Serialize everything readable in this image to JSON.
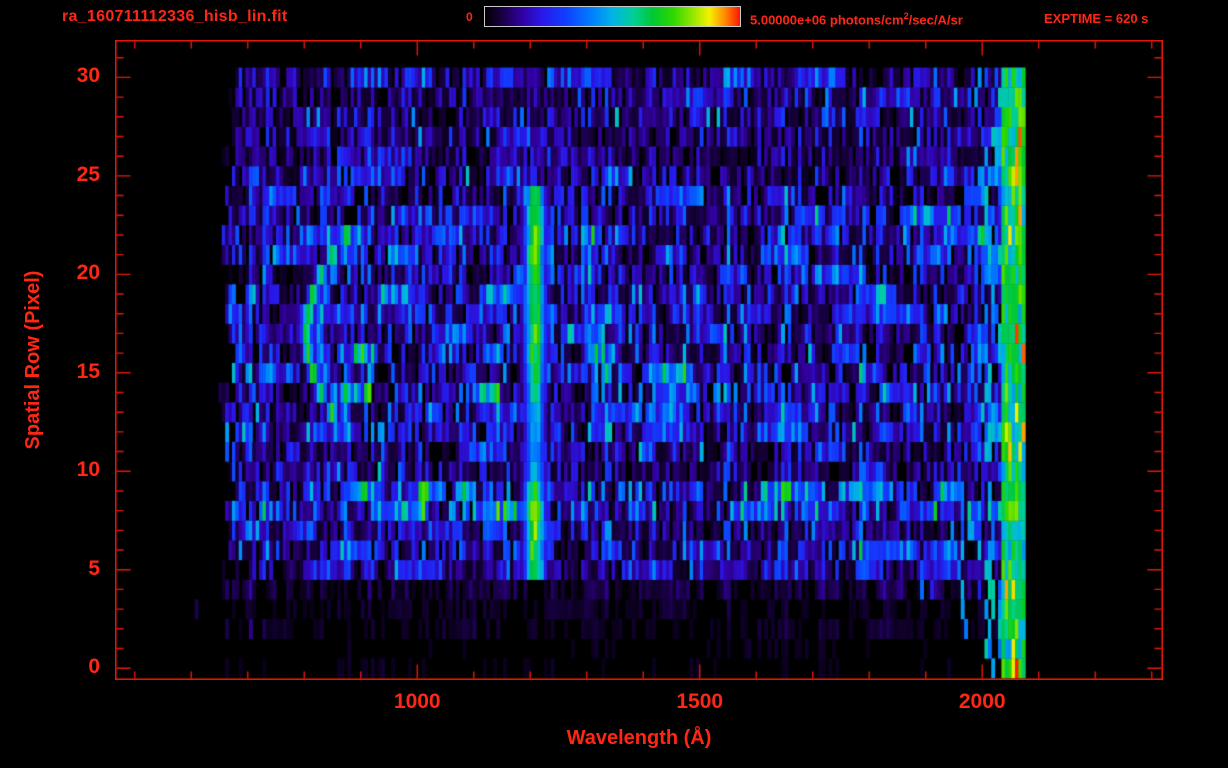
{
  "colors": {
    "background": "#000000",
    "accent_text": "#ff2616",
    "accent_line": "#e51808"
  },
  "header": {
    "title": "ra_160711112336_hisb_lin.fit",
    "colorbar": {
      "min_label": "0",
      "max_label_prefix": "5.00000e+06 photons/cm",
      "max_label_sup": "2",
      "max_label_suffix": "/sec/A/sr"
    },
    "exptime_label": "EXPTIME = 620 s"
  },
  "chart_data": {
    "type": "heatmap",
    "title": "ra_160711112336_hisb_lin.fit",
    "xlabel": "Wavelength (Å)",
    "ylabel": "Spatial Row (Pixel)",
    "xlim": [
      465,
      2320
    ],
    "ylim": [
      -0.6,
      31.9
    ],
    "x_ticks": [
      1000,
      1500,
      2000
    ],
    "x_minor_step": 100,
    "y_ticks": [
      0,
      5,
      10,
      15,
      20,
      25,
      30
    ],
    "y_minor_step": 1,
    "colorbar_min": 0,
    "colorbar_max": 5000000,
    "colorbar_units": "photons/cm2/sec/A/sr",
    "exposure_seconds": 620,
    "data_extent": {
      "wavelength_A": [
        660,
        2072
      ],
      "rows": [
        0,
        30
      ]
    },
    "row_brightness": [
      0.06,
      0.06,
      0.12,
      0.12,
      0.2,
      0.55,
      0.7,
      0.75,
      0.95,
      0.9,
      0.6,
      0.65,
      0.75,
      0.7,
      0.85,
      0.95,
      0.85,
      0.75,
      0.7,
      0.75,
      0.7,
      0.75,
      0.85,
      0.8,
      0.7,
      0.6,
      0.45,
      0.55,
      0.5,
      0.55,
      0.6
    ],
    "features": {
      "emission_line": {
        "name": "bright-emission-line",
        "center_A": 1205,
        "sigma_A": 13,
        "row_range": [
          5,
          24
        ],
        "row_strengths": [
          0.72,
          0.74,
          0.76,
          0.78,
          0.74,
          0.5,
          0.46,
          0.5,
          0.55,
          0.6,
          0.66,
          0.72,
          0.74,
          0.74,
          0.72,
          0.74,
          0.76,
          0.78,
          0.74,
          0.68
        ]
      },
      "curved_arc": {
        "name": "curved-arc-line",
        "row_range": [
          13,
          22
        ],
        "vertex_A": 802,
        "vertex_row": 17,
        "curvature_A_per_row2": 2.8,
        "sigma_A": 7,
        "strength": 0.72,
        "secondary_offset_A": 22,
        "secondary_strength": 0.5
      },
      "right_edge_band": {
        "name": "right-edge-bright-band",
        "wavelength_A": [
          2030,
          2072
        ],
        "strength_range": [
          0.45,
          0.8
        ]
      },
      "left_faint_line": {
        "name": "faint-left-line",
        "center_A": 702,
        "strength": 0.16
      }
    },
    "colormap_stops": [
      [
        0,
        "#000000"
      ],
      [
        0.06,
        "#16003c"
      ],
      [
        0.14,
        "#31009b"
      ],
      [
        0.22,
        "#2a16e8"
      ],
      [
        0.32,
        "#1040ff"
      ],
      [
        0.42,
        "#0080ff"
      ],
      [
        0.5,
        "#00b4e6"
      ],
      [
        0.58,
        "#00cf9a"
      ],
      [
        0.66,
        "#00c830"
      ],
      [
        0.74,
        "#30d800"
      ],
      [
        0.82,
        "#9ce800"
      ],
      [
        0.88,
        "#f4f000"
      ],
      [
        0.94,
        "#ff8c00"
      ],
      [
        1,
        "#ff1400"
      ]
    ],
    "seed": 20160711
  }
}
